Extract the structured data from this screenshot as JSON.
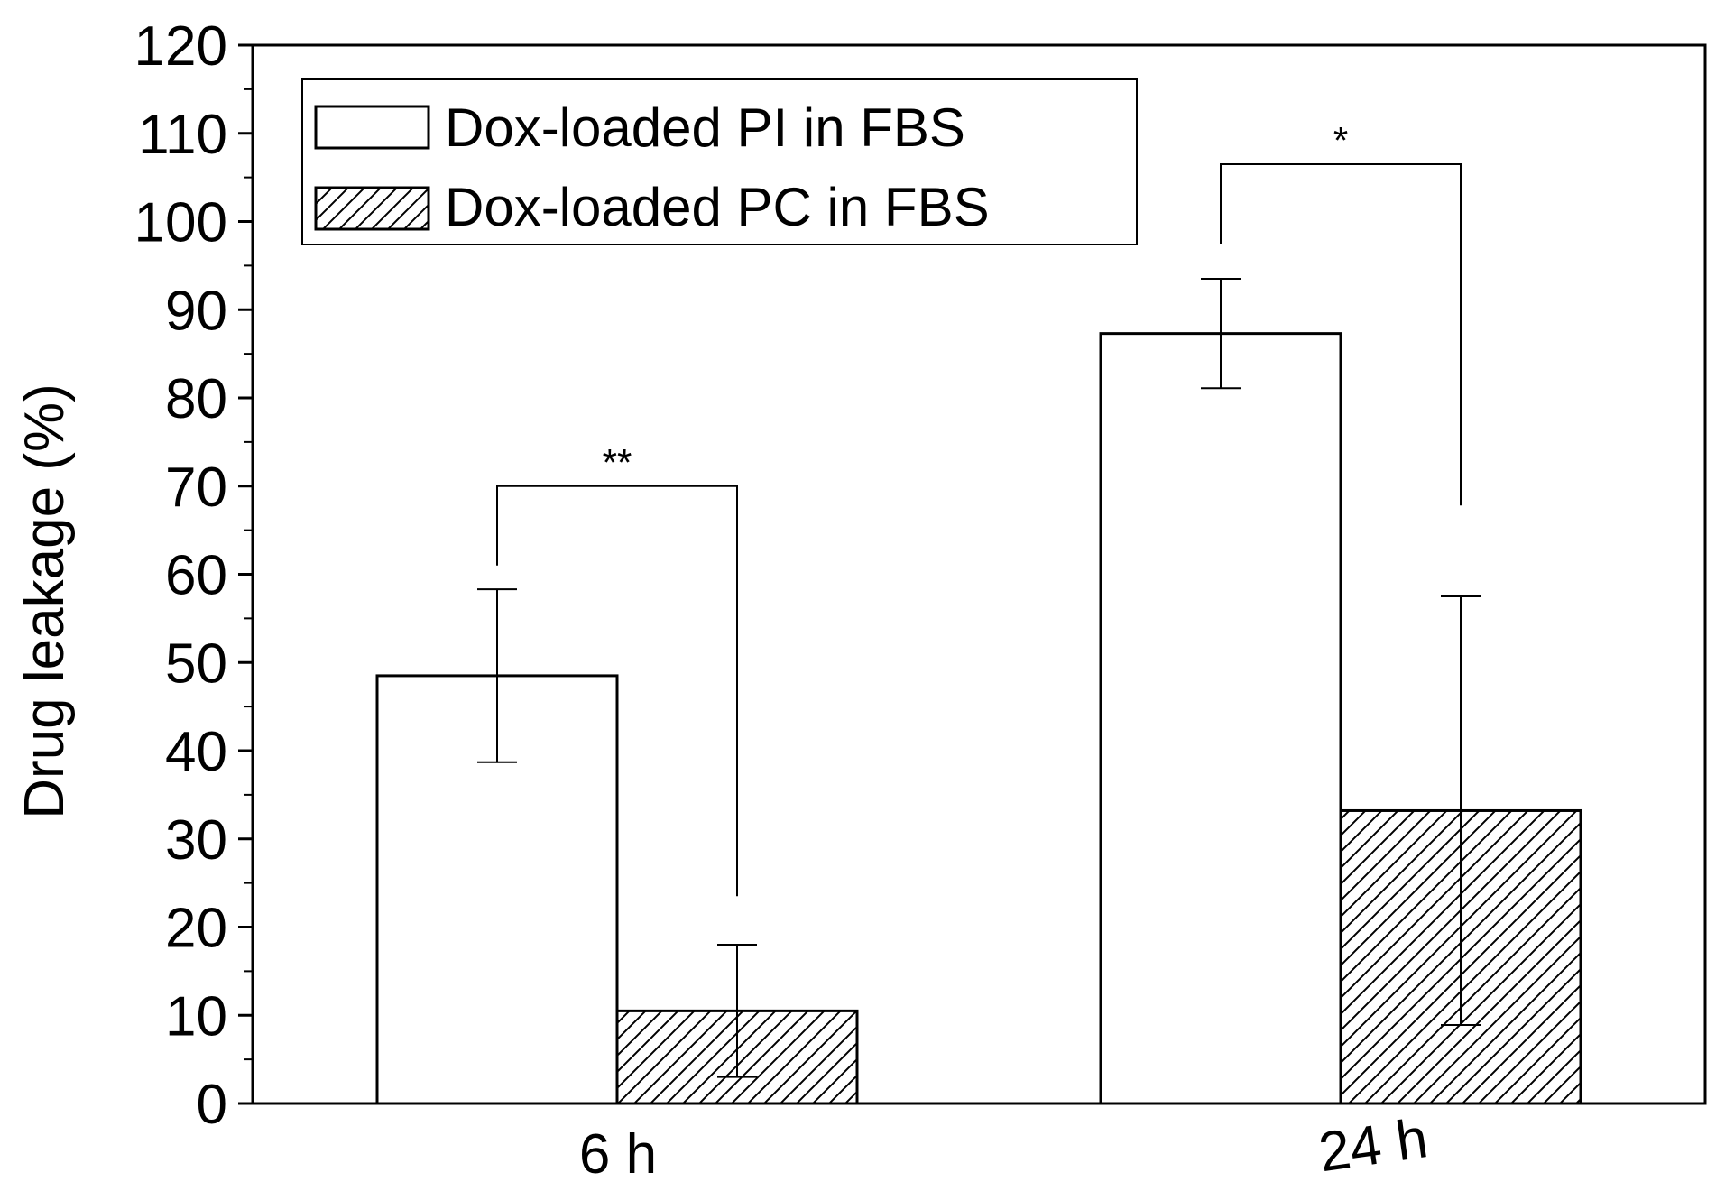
{
  "chart_data": {
    "type": "bar",
    "title": "",
    "xlabel": "",
    "ylabel": "Drug leakage (%)",
    "categories": [
      "6 h",
      "24 h"
    ],
    "ylim": [
      0,
      120
    ],
    "yticks": [
      0,
      10,
      20,
      30,
      40,
      50,
      60,
      70,
      80,
      90,
      100,
      110,
      120
    ],
    "grid": false,
    "legend_position": "top-left",
    "series": [
      {
        "name": "Dox-loaded PI in FBS",
        "values": [
          48.5,
          87.3
        ],
        "errors": [
          9.8,
          6.2
        ],
        "fill": "#ffffff",
        "pattern": "none"
      },
      {
        "name": "Dox-loaded PC in FBS",
        "values": [
          10.5,
          33.2
        ],
        "errors": [
          7.5,
          24.3
        ],
        "fill": "#ffffff",
        "pattern": "diagonal-hatch"
      }
    ],
    "significance": [
      {
        "category": "6 h",
        "label": "**",
        "bracket_level": 70
      },
      {
        "category": "24 h",
        "label": "*",
        "bracket_level": 106.5
      }
    ]
  }
}
